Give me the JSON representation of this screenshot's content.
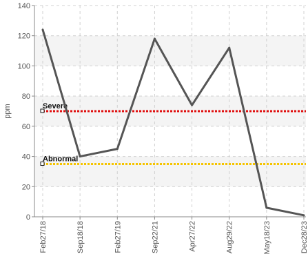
{
  "chart_data": {
    "type": "line",
    "title": "",
    "xlabel": "",
    "ylabel": "ppm",
    "ylim": [
      0,
      140
    ],
    "yticks": [
      0,
      20,
      40,
      60,
      80,
      100,
      120,
      140
    ],
    "grid": true,
    "categories": [
      "Feb27/18",
      "Sep18/18",
      "Feb27/19",
      "Sep22/21",
      "Apr27/22",
      "Aug29/22",
      "May18/23",
      "Dec28/23"
    ],
    "series": [
      {
        "values": [
          124,
          40,
          45,
          118,
          74,
          112,
          6,
          1
        ]
      }
    ],
    "thresholds": [
      {
        "label": "Severe",
        "value": 70
      },
      {
        "label": "Abnormal",
        "value": 35
      }
    ],
    "colors": {
      "series": "#555555",
      "severe": "#e01010",
      "abnormal": "#f5c400",
      "band": "#f4f4f4",
      "grid": "#d0d0d0",
      "axis": "#888888"
    }
  }
}
